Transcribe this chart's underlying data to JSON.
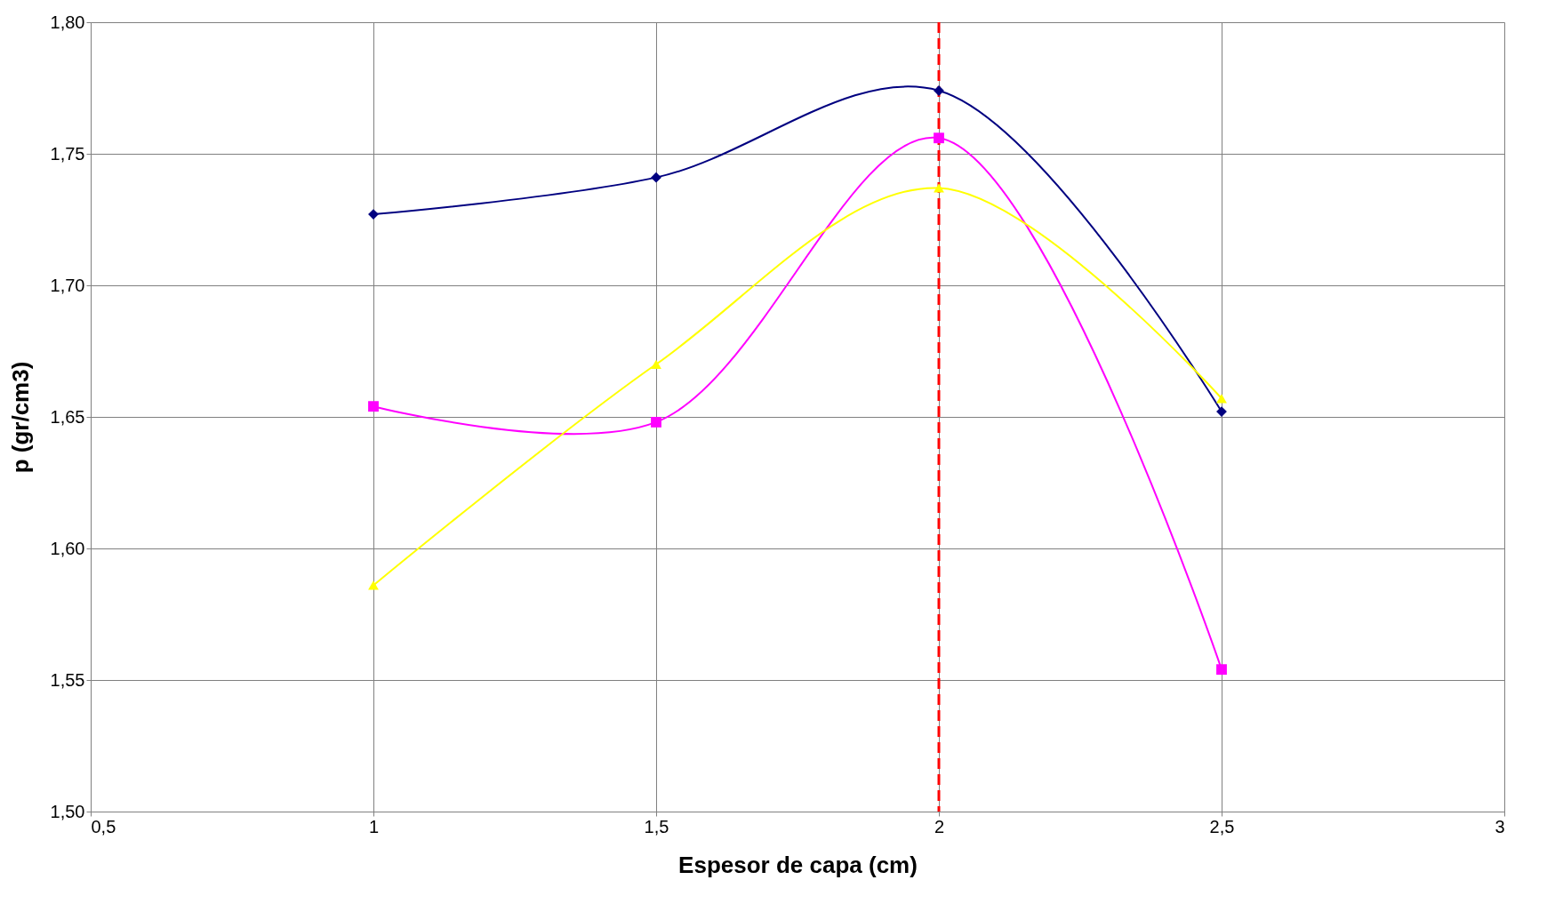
{
  "chart_data": {
    "type": "line",
    "xlabel": "Espesor de capa (cm)",
    "ylabel": "p (gr/cm3)",
    "x": [
      1,
      1.5,
      2,
      2.5
    ],
    "series": [
      {
        "color": "#000080",
        "marker": "diamond",
        "values": [
          1.727,
          1.741,
          1.774,
          1.652
        ]
      },
      {
        "color": "#ff00ff",
        "marker": "square",
        "values": [
          1.654,
          1.648,
          1.756,
          1.554
        ]
      },
      {
        "color": "#ffff00",
        "marker": "triangle",
        "values": [
          1.586,
          1.67,
          1.737,
          1.657
        ]
      }
    ],
    "xlim": [
      0.5,
      3
    ],
    "xticks": [
      {
        "value": 0.5,
        "label": "0,5"
      },
      1,
      {
        "value": 1.5,
        "label": "1,5"
      },
      2,
      {
        "value": 2.5,
        "label": "2,5"
      },
      3
    ],
    "ylim": [
      1.5,
      1.8
    ],
    "yticks": [
      {
        "value": 1.5,
        "label": "1,50"
      },
      {
        "value": 1.55,
        "label": "1,55"
      },
      {
        "value": 1.6,
        "label": "1,60"
      },
      {
        "value": 1.65,
        "label": "1,65"
      },
      {
        "value": 1.7,
        "label": "1,70"
      },
      {
        "value": 1.75,
        "label": "1,75"
      },
      {
        "value": 1.8,
        "label": "1,80"
      }
    ],
    "ref_lines": [
      {
        "axis": "x",
        "value": 2,
        "color": "#ff0000",
        "line_style": "dashed"
      }
    ],
    "grid": true,
    "legend": false
  }
}
